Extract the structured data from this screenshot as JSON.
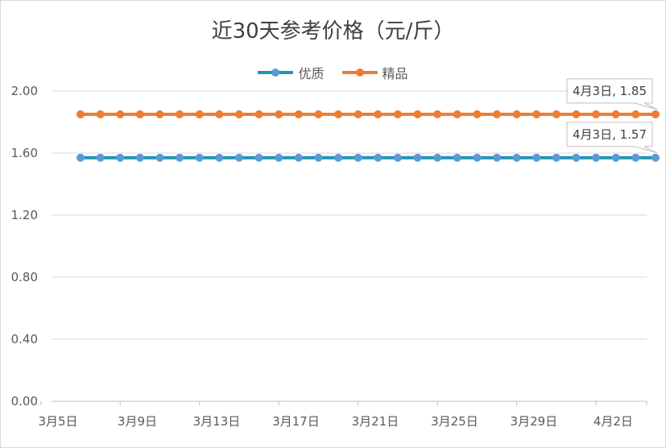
{
  "chart_data": {
    "type": "line",
    "title": "近30天参考价格（元/斤）",
    "xlabel": "",
    "ylabel": "",
    "ylim": [
      0,
      2.0
    ],
    "yticks": [
      "0.00",
      "0.40",
      "0.80",
      "1.20",
      "1.60",
      "2.00"
    ],
    "ytick_values": [
      0,
      0.4,
      0.8,
      1.2,
      1.6,
      2.0
    ],
    "x": [
      "3月5日",
      "3月6日",
      "3月7日",
      "3月8日",
      "3月9日",
      "3月10日",
      "3月11日",
      "3月12日",
      "3月13日",
      "3月14日",
      "3月15日",
      "3月16日",
      "3月17日",
      "3月18日",
      "3月19日",
      "3月20日",
      "3月21日",
      "3月22日",
      "3月23日",
      "3月24日",
      "3月25日",
      "3月26日",
      "3月27日",
      "3月28日",
      "3月29日",
      "3月30日",
      "3月31日",
      "4月1日",
      "4月2日",
      "4月3日"
    ],
    "xtick_labels": [
      "3月5日",
      "3月9日",
      "3月13日",
      "3月17日",
      "3月21日",
      "3月25日",
      "3月29日",
      "4月2日"
    ],
    "grid": "horizontal",
    "legend_position": "top",
    "series": [
      {
        "name": "优质",
        "color": "#1b96b6",
        "marker_color": "#5b9bd5",
        "values": [
          1.57,
          1.57,
          1.57,
          1.57,
          1.57,
          1.57,
          1.57,
          1.57,
          1.57,
          1.57,
          1.57,
          1.57,
          1.57,
          1.57,
          1.57,
          1.57,
          1.57,
          1.57,
          1.57,
          1.57,
          1.57,
          1.57,
          1.57,
          1.57,
          1.57,
          1.57,
          1.57,
          1.57,
          1.57,
          1.57
        ]
      },
      {
        "name": "精品",
        "color": "#ed7d31",
        "marker_color": "#ed7d31",
        "values": [
          1.85,
          1.85,
          1.85,
          1.85,
          1.85,
          1.85,
          1.85,
          1.85,
          1.85,
          1.85,
          1.85,
          1.85,
          1.85,
          1.85,
          1.85,
          1.85,
          1.85,
          1.85,
          1.85,
          1.85,
          1.85,
          1.85,
          1.85,
          1.85,
          1.85,
          1.85,
          1.85,
          1.85,
          1.85,
          1.85
        ]
      }
    ],
    "annotations": [
      {
        "series": "精品",
        "text": "4月3日, 1.85"
      },
      {
        "series": "优质",
        "text": "4月3日, 1.57"
      }
    ]
  }
}
